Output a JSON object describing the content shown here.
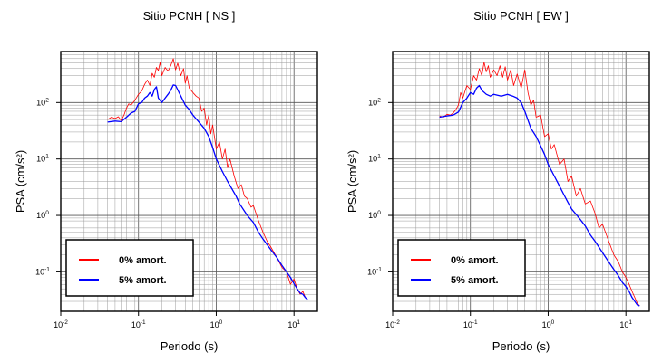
{
  "chart_data": [
    {
      "type": "line",
      "title": "Sitio PCNH [ NS ]",
      "xlabel": "Periodo (s)",
      "ylabel": "PSA (cm/s²)",
      "xscale": "log",
      "yscale": "log",
      "xlim": [
        0.01,
        20
      ],
      "ylim": [
        0.02,
        800
      ],
      "grid": true,
      "legend_position": "bottom-left",
      "x_ticks": [
        {
          "base": "10",
          "exp": "-2",
          "value": 0.01
        },
        {
          "base": "10",
          "exp": "-1",
          "value": 0.1
        },
        {
          "base": "10",
          "exp": "0",
          "value": 1
        },
        {
          "base": "10",
          "exp": "1",
          "value": 10
        }
      ],
      "y_ticks": [
        {
          "base": "10",
          "exp": "-1",
          "value": 0.1
        },
        {
          "base": "10",
          "exp": "0",
          "value": 1
        },
        {
          "base": "10",
          "exp": "1",
          "value": 10
        },
        {
          "base": "10",
          "exp": "2",
          "value": 100
        }
      ],
      "series": [
        {
          "name": "0% amort.",
          "color": "#ff0000",
          "x": [
            0.04,
            0.045,
            0.05,
            0.055,
            0.06,
            0.065,
            0.07,
            0.075,
            0.08,
            0.09,
            0.1,
            0.11,
            0.12,
            0.13,
            0.14,
            0.15,
            0.16,
            0.17,
            0.18,
            0.19,
            0.2,
            0.22,
            0.24,
            0.26,
            0.28,
            0.3,
            0.32,
            0.35,
            0.38,
            0.4,
            0.42,
            0.45,
            0.5,
            0.55,
            0.6,
            0.65,
            0.7,
            0.75,
            0.8,
            0.85,
            0.9,
            1.0,
            1.1,
            1.2,
            1.3,
            1.4,
            1.5,
            1.7,
            1.9,
            2.1,
            2.3,
            2.5,
            2.8,
            3.0,
            3.5,
            4.0,
            4.5,
            5.0,
            6.0,
            7.0,
            8.0,
            9.0,
            10.0,
            11.0,
            12.0,
            13.0,
            14.0,
            15.0
          ],
          "y": [
            50,
            55,
            52,
            56,
            48,
            60,
            80,
            95,
            90,
            110,
            140,
            160,
            210,
            250,
            200,
            330,
            280,
            420,
            370,
            520,
            300,
            420,
            360,
            450,
            600,
            380,
            500,
            300,
            400,
            220,
            300,
            180,
            150,
            130,
            120,
            70,
            80,
            40,
            60,
            28,
            40,
            15,
            20,
            10,
            15,
            7,
            10,
            5,
            3,
            3.5,
            2.2,
            2.0,
            1.4,
            1.5,
            0.8,
            0.5,
            0.35,
            0.28,
            0.18,
            0.12,
            0.1,
            0.06,
            0.075,
            0.05,
            0.04,
            0.045,
            0.035,
            0.032
          ]
        },
        {
          "name": "5% amort.",
          "color": "#0000ff",
          "x": [
            0.04,
            0.05,
            0.06,
            0.07,
            0.08,
            0.09,
            0.1,
            0.11,
            0.12,
            0.13,
            0.14,
            0.15,
            0.16,
            0.17,
            0.18,
            0.2,
            0.22,
            0.24,
            0.26,
            0.28,
            0.3,
            0.35,
            0.4,
            0.45,
            0.5,
            0.6,
            0.7,
            0.8,
            0.9,
            1.0,
            1.2,
            1.4,
            1.6,
            1.8,
            2.0,
            2.5,
            3.0,
            3.5,
            4.0,
            5.0,
            6.0,
            7.0,
            8.0,
            9.0,
            10.0,
            11.0,
            12.0,
            13.0,
            14.0,
            15.0
          ],
          "y": [
            45,
            47,
            46,
            55,
            65,
            70,
            95,
            100,
            120,
            130,
            150,
            130,
            170,
            190,
            120,
            100,
            120,
            140,
            165,
            205,
            200,
            130,
            90,
            75,
            60,
            45,
            35,
            25,
            16,
            10,
            6,
            4,
            2.9,
            2.2,
            1.6,
            1.0,
            0.75,
            0.5,
            0.38,
            0.25,
            0.18,
            0.13,
            0.1,
            0.08,
            0.062,
            0.05,
            0.042,
            0.04,
            0.035,
            0.032
          ]
        }
      ]
    },
    {
      "type": "line",
      "title": "Sitio PCNH [ EW ]",
      "xlabel": "Periodo (s)",
      "ylabel": "PSA (cm/s²)",
      "xscale": "log",
      "yscale": "log",
      "xlim": [
        0.01,
        20
      ],
      "ylim": [
        0.02,
        800
      ],
      "grid": true,
      "legend_position": "bottom-left",
      "x_ticks": [
        {
          "base": "10",
          "exp": "-2",
          "value": 0.01
        },
        {
          "base": "10",
          "exp": "-1",
          "value": 0.1
        },
        {
          "base": "10",
          "exp": "0",
          "value": 1
        },
        {
          "base": "10",
          "exp": "1",
          "value": 10
        }
      ],
      "y_ticks": [
        {
          "base": "10",
          "exp": "-1",
          "value": 0.1
        },
        {
          "base": "10",
          "exp": "0",
          "value": 1
        },
        {
          "base": "10",
          "exp": "1",
          "value": 10
        },
        {
          "base": "10",
          "exp": "2",
          "value": 100
        }
      ],
      "series": [
        {
          "name": "0% amort.",
          "color": "#ff0000",
          "x": [
            0.04,
            0.045,
            0.05,
            0.055,
            0.06,
            0.065,
            0.07,
            0.075,
            0.08,
            0.09,
            0.1,
            0.11,
            0.12,
            0.13,
            0.14,
            0.15,
            0.16,
            0.17,
            0.18,
            0.2,
            0.22,
            0.24,
            0.26,
            0.28,
            0.3,
            0.33,
            0.36,
            0.4,
            0.45,
            0.5,
            0.55,
            0.6,
            0.65,
            0.7,
            0.8,
            0.9,
            1.0,
            1.1,
            1.2,
            1.4,
            1.6,
            1.8,
            2.0,
            2.3,
            2.6,
            3.0,
            3.5,
            4.0,
            4.5,
            5.0,
            6.0,
            7.0,
            8.0,
            9.0,
            10.0,
            11.0,
            12.0,
            13.0,
            14.0,
            15.0
          ],
          "y": [
            58,
            55,
            62,
            60,
            65,
            75,
            90,
            150,
            120,
            200,
            170,
            300,
            250,
            400,
            300,
            520,
            350,
            450,
            280,
            380,
            300,
            450,
            280,
            430,
            250,
            380,
            200,
            320,
            180,
            380,
            150,
            90,
            110,
            55,
            60,
            25,
            28,
            15,
            18,
            8,
            10,
            4,
            5,
            2.2,
            3.0,
            1.6,
            1.8,
            1.1,
            0.6,
            0.7,
            0.35,
            0.2,
            0.15,
            0.1,
            0.08,
            0.06,
            0.045,
            0.035,
            0.028,
            0.025
          ]
        },
        {
          "name": "5% amort.",
          "color": "#0000ff",
          "x": [
            0.04,
            0.05,
            0.06,
            0.07,
            0.08,
            0.09,
            0.1,
            0.11,
            0.12,
            0.13,
            0.14,
            0.16,
            0.18,
            0.2,
            0.25,
            0.3,
            0.35,
            0.4,
            0.45,
            0.5,
            0.6,
            0.7,
            0.8,
            0.9,
            1.0,
            1.2,
            1.4,
            1.6,
            1.8,
            2.0,
            2.5,
            3.0,
            3.5,
            4.0,
            5.0,
            6.0,
            7.0,
            8.0,
            9.0,
            10.0,
            11.0,
            12.0,
            13.0,
            14.0,
            15.0
          ],
          "y": [
            55,
            58,
            60,
            68,
            100,
            120,
            150,
            140,
            180,
            200,
            165,
            140,
            130,
            140,
            130,
            140,
            130,
            120,
            100,
            70,
            35,
            25,
            17,
            12,
            8,
            5,
            3.3,
            2.3,
            1.7,
            1.3,
            0.9,
            0.65,
            0.45,
            0.35,
            0.22,
            0.15,
            0.11,
            0.085,
            0.065,
            0.055,
            0.045,
            0.035,
            0.03,
            0.026,
            0.025
          ]
        }
      ]
    }
  ]
}
